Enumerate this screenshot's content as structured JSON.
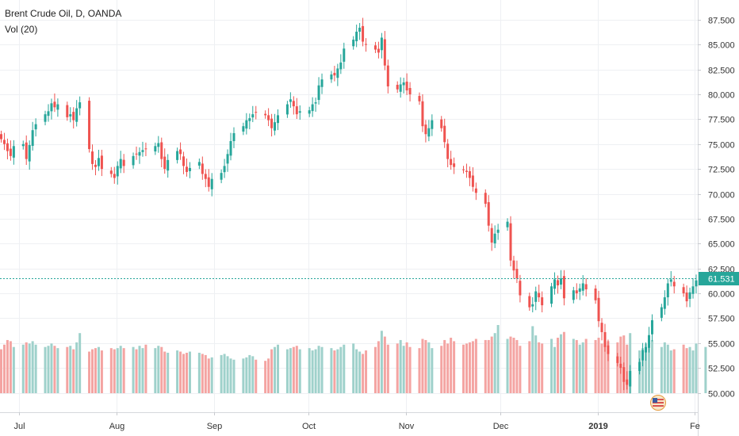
{
  "legend": {
    "title": "Brent Crude Oil, D, OANDA",
    "volume": "Vol (20)"
  },
  "colors": {
    "up": "#26a69a",
    "down": "#ef5350",
    "vol_up": "#9fd1cb",
    "vol_down": "#f4a4a2",
    "grid": "#eef0f3",
    "price_line": "#26a69a",
    "price_tag": "#26a69a"
  },
  "chart_data": {
    "type": "candlestick",
    "symbol": "Brent Crude Oil",
    "interval": "D",
    "source": "OANDA",
    "last_price": "61.531",
    "y_ticks": [
      "87.500",
      "85.000",
      "82.500",
      "80.000",
      "77.500",
      "75.000",
      "72.500",
      "70.000",
      "67.500",
      "65.000",
      "62.500",
      "60.000",
      "57.500",
      "55.000",
      "52.500",
      "50.000"
    ],
    "x_ticks": [
      {
        "label": "Jul",
        "date": "2018-07-01",
        "bold": false
      },
      {
        "label": "Aug",
        "date": "2018-08-01",
        "bold": false
      },
      {
        "label": "Sep",
        "date": "2018-09-01",
        "bold": false
      },
      {
        "label": "Oct",
        "date": "2018-10-01",
        "bold": false
      },
      {
        "label": "Nov",
        "date": "2018-11-01",
        "bold": false
      },
      {
        "label": "Dec",
        "date": "2018-12-01",
        "bold": false
      },
      {
        "label": "2019",
        "date": "2019-01-01",
        "bold": true
      },
      {
        "label": "Fe",
        "date": "2019-02-01",
        "bold": false
      }
    ],
    "ylim": [
      48.5,
      88.5
    ],
    "close_series": [
      75.5,
      75.0,
      74.3,
      73.8,
      74.8,
      75.0,
      73.5,
      74.9,
      76.4,
      77.0,
      78.0,
      78.3,
      79.1,
      78.7,
      79.0,
      77.7,
      78.0,
      77.4,
      78.6,
      79.2,
      74.5,
      73.0,
      72.7,
      73.6,
      72.5,
      72.0,
      71.6,
      72.8,
      73.5,
      72.8,
      73.8,
      74.0,
      74.2,
      74.4,
      74.5,
      74.8,
      75.1,
      73.5,
      72.5,
      73.4,
      74.3,
      74.0,
      72.8,
      72.2,
      72.6,
      73.2,
      72.0,
      71.5,
      70.7,
      71.5,
      72.1,
      72.8,
      74.0,
      75.3,
      76.1,
      76.8,
      77.4,
      77.6,
      78.0,
      78.2,
      77.9,
      77.4,
      76.6,
      77.2,
      77.9,
      79.0,
      79.5,
      78.8,
      78.0,
      78.3,
      78.4,
      79.0,
      79.2,
      80.9,
      81.5,
      82.0,
      81.9,
      82.6,
      83.2,
      84.6,
      85.5,
      86.3,
      86.7,
      85.3,
      85.0,
      84.5,
      84.2,
      85.7,
      82.9,
      80.8,
      80.5,
      81.0,
      81.2,
      80.4,
      80.0,
      79.3,
      76.8,
      76.0,
      76.6,
      77.4,
      76.6,
      75.2,
      73.5,
      72.9,
      72.7,
      72.4,
      72.2,
      71.6,
      70.7,
      70.1,
      69.0,
      66.8,
      65.1,
      66.0,
      66.4,
      67.2,
      63.3,
      62.3,
      61.5,
      59.8,
      58.6,
      58.9,
      60.2,
      59.6,
      58.8,
      60.7,
      61.4,
      60.8,
      61.5,
      59.5,
      60.3,
      60.0,
      60.5,
      61.0,
      60.4,
      59.3,
      57.2,
      56.1,
      54.6,
      53.9,
      53.0,
      52.5,
      51.1,
      50.8,
      52.2,
      53.1,
      54.3,
      54.6,
      55.8,
      57.3,
      58.6,
      59.6,
      61.0,
      61.4,
      60.7,
      60.0,
      59.2,
      60.1,
      60.7,
      61.3,
      61.5
    ],
    "volume_series": [
      38,
      42,
      46,
      45,
      40,
      42,
      44,
      43,
      45,
      42,
      40,
      41,
      43,
      41,
      39,
      40,
      41,
      38,
      44,
      52,
      36,
      38,
      39,
      40,
      37,
      39,
      38,
      39,
      41,
      39,
      40,
      38,
      41,
      39,
      42,
      39,
      41,
      40,
      36,
      35,
      37,
      36,
      34,
      35,
      36,
      35,
      34,
      33,
      30,
      31,
      33,
      34,
      32,
      30,
      29,
      30,
      31,
      33,
      32,
      29,
      28,
      30,
      38,
      40,
      42,
      38,
      39,
      40,
      41,
      38,
      39,
      37,
      38,
      41,
      40,
      39,
      37,
      38,
      40,
      42,
      43,
      38,
      36,
      34,
      37,
      40,
      45,
      54,
      49,
      42,
      43,
      46,
      41,
      44,
      40,
      39,
      47,
      46,
      44,
      39,
      41,
      46,
      43,
      48,
      45,
      42,
      43,
      44,
      45,
      47,
      46,
      46,
      49,
      52,
      59,
      47,
      49,
      48,
      46,
      41,
      45,
      58,
      50,
      44,
      43,
      47,
      40,
      48,
      51,
      53,
      47,
      46,
      42,
      44,
      47,
      46,
      48,
      43,
      49,
      45,
      44,
      49,
      50,
      42,
      52,
      37,
      39,
      43,
      44,
      46,
      40,
      44,
      42,
      37,
      38,
      42,
      39,
      40,
      37,
      43,
      40,
      44,
      38,
      33
    ]
  }
}
